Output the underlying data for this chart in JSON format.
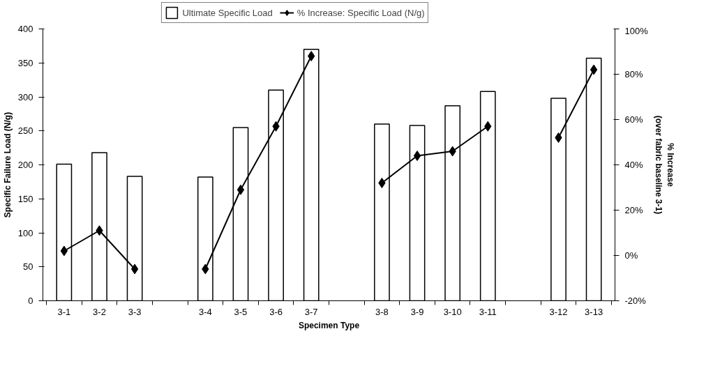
{
  "chart_data": {
    "type": "bar",
    "xlabel": "Specimen Type",
    "ylabel": "Specific Failure Load (N/g)",
    "y2label": "% Increase\n(over fabric baseline 3-1)",
    "categories": [
      "3-1",
      "3-2",
      "3-3",
      null,
      "3-4",
      "3-5",
      "3-6",
      "3-7",
      null,
      "3-8",
      "3-9",
      "3-10",
      "3-11",
      null,
      "3-12",
      "3-13"
    ],
    "series": [
      {
        "name": "Ultimate Specific Load",
        "color": "#ffffff",
        "values": [
          201,
          218,
          183,
          null,
          182,
          255,
          310,
          370,
          null,
          260,
          258,
          287,
          308,
          null,
          298,
          357
        ]
      },
      {
        "name": "% Increase: Specific Load (N/g)",
        "type": "line",
        "axis": "y2",
        "color": "#000000",
        "marker": "diamond",
        "values": [
          2,
          11,
          -6,
          null,
          -6,
          29,
          57,
          88,
          null,
          32,
          44,
          46,
          57,
          null,
          52,
          82
        ]
      }
    ],
    "ylim": [
      0,
      400
    ],
    "yticks": [
      0,
      50,
      100,
      150,
      200,
      250,
      300,
      350,
      400
    ],
    "y2lim": [
      -20,
      100
    ],
    "y2ticks": [
      {
        "value": -20,
        "label": "-20%"
      },
      {
        "value": 0,
        "label": "0%"
      },
      {
        "value": 20,
        "label": "20%"
      },
      {
        "value": 40,
        "label": "40%"
      },
      {
        "value": 60,
        "label": "60%"
      },
      {
        "value": 80,
        "label": "80%"
      },
      {
        "value": 100,
        "label": "100%"
      }
    ],
    "grid": false,
    "legend": "top"
  }
}
